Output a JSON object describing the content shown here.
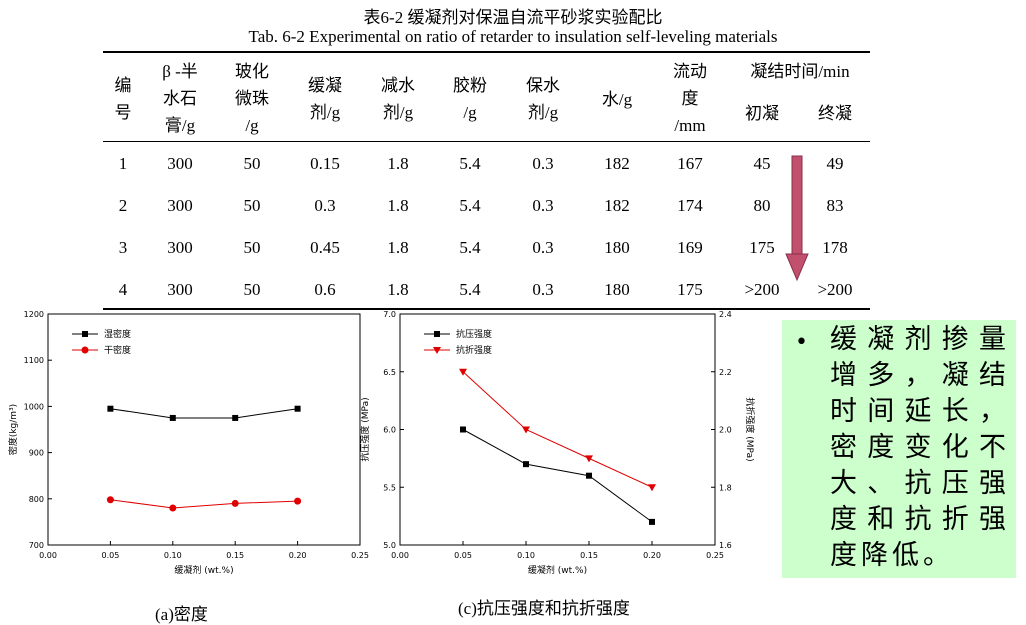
{
  "table": {
    "title_cn": "表6-2 缓凝剂对保温自流平砂浆实验配比",
    "title_en": "Tab. 6-2 Experimental on ratio of retarder to insulation self-leveling materials",
    "headers": {
      "no": [
        "编",
        "号"
      ],
      "gypsum": [
        "β -半",
        "水石",
        "膏/g"
      ],
      "beads": [
        "玻化",
        "微珠",
        "/g"
      ],
      "retarder": [
        "缓凝",
        "剂/g"
      ],
      "water_reducer": [
        "减水",
        "剂/g"
      ],
      "powder": [
        "胶粉",
        "/g"
      ],
      "water_retention": [
        "保水",
        "剂/g"
      ],
      "water": "水/g",
      "fluidity": [
        "流动",
        "度",
        "/mm"
      ],
      "setting_time": "凝结时间/min",
      "initial": "初凝",
      "final": "终凝"
    },
    "rows": [
      [
        "1",
        "300",
        "50",
        "0.15",
        "1.8",
        "5.4",
        "0.3",
        "182",
        "167",
        "45",
        "49"
      ],
      [
        "2",
        "300",
        "50",
        "0.3",
        "1.8",
        "5.4",
        "0.3",
        "182",
        "174",
        "80",
        "83"
      ],
      [
        "3",
        "300",
        "50",
        "0.45",
        "1.8",
        "5.4",
        "0.3",
        "180",
        "169",
        "175",
        "178"
      ],
      [
        "4",
        "300",
        "50",
        "0.6",
        "1.8",
        "5.4",
        "0.3",
        "180",
        "175",
        ">200",
        ">200"
      ]
    ],
    "arrow_color": "#c0506e"
  },
  "chart_data": [
    {
      "type": "line",
      "title": "",
      "xlabel": "缓凝剂 (wt.%)",
      "ylabel": "密度(kg/m³)",
      "xlim": [
        0.0,
        0.25
      ],
      "ylim": [
        700,
        1200
      ],
      "xticks": [
        "0.00",
        "0.05",
        "0.10",
        "0.15",
        "0.20",
        "0.25"
      ],
      "yticks": [
        "700",
        "800",
        "900",
        "1000",
        "1100",
        "1200"
      ],
      "x": [
        0.05,
        0.1,
        0.15,
        0.2
      ],
      "series": [
        {
          "name": "湿密度",
          "values": [
            995,
            975,
            975,
            995
          ],
          "color": "#000000",
          "marker": "square"
        },
        {
          "name": "干密度",
          "values": [
            798,
            780,
            790,
            795
          ],
          "color": "#e00000",
          "marker": "circle"
        }
      ],
      "legend": "top-left",
      "caption": "(a)密度"
    },
    {
      "type": "line",
      "title": "",
      "xlabel": "缓凝剂 (wt.%)",
      "ylabel": "抗压强度 (MPa)",
      "y2label": "抗折强度 (MPa)",
      "xlim": [
        0.0,
        0.25
      ],
      "ylim": [
        5.0,
        7.0
      ],
      "y2lim": [
        1.6,
        2.4
      ],
      "xticks": [
        "0.00",
        "0.05",
        "0.10",
        "0.15",
        "0.20",
        "0.25"
      ],
      "yticks": [
        "5.0",
        "5.5",
        "6.0",
        "6.5",
        "7.0"
      ],
      "y2ticks": [
        "1.6",
        "1.8",
        "2.0",
        "2.2",
        "2.4"
      ],
      "x": [
        0.05,
        0.1,
        0.15,
        0.2
      ],
      "series": [
        {
          "name": "抗压强度",
          "values": [
            6.0,
            5.7,
            5.6,
            5.2
          ],
          "color": "#000000",
          "marker": "square",
          "axis": "left"
        },
        {
          "name": "抗折强度",
          "values": [
            2.2,
            2.0,
            1.9,
            1.8
          ],
          "color": "#e00000",
          "marker": "triangle-down",
          "axis": "right"
        }
      ],
      "legend": "top-left",
      "caption": "(c)抗压强度和抗折强度"
    }
  ],
  "bullet": {
    "text": "缓凝剂掺量增多，凝结时间延长，密度变化不大、抗压强度和抗折强度降低。",
    "background": "#ccffcc"
  }
}
